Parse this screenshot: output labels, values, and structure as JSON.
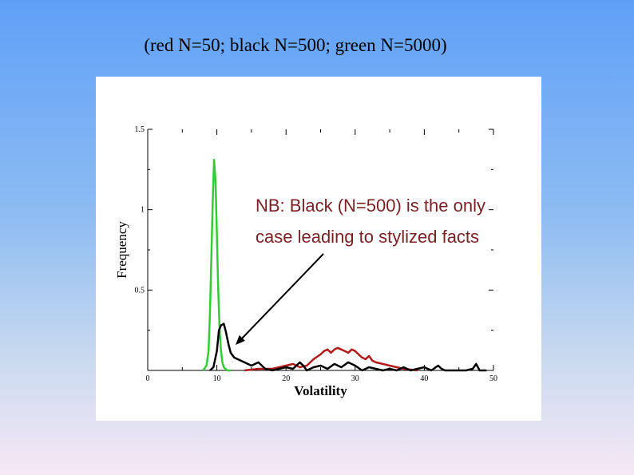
{
  "title": "(red N=50; black N=500; green N=5000)",
  "annotation": {
    "lines": [
      "NB: Black (N=500) is the only",
      "case leading to stylized facts"
    ],
    "color": "#7a1f22"
  },
  "chart_data": {
    "type": "line",
    "xlabel": "Volatility",
    "ylabel": "Frequency",
    "xlim": [
      0,
      50
    ],
    "ylim": [
      0,
      1.5
    ],
    "x_ticks": [
      0,
      10,
      20,
      30,
      40,
      50
    ],
    "y_ticks": [
      0.5,
      1,
      1.5
    ],
    "y_tick_labels": [
      "0.5",
      "1",
      "1.5"
    ],
    "grid": false,
    "series": [
      {
        "name": "N=5000",
        "color": "#33cc33",
        "x": [
          8.0,
          8.5,
          8.8,
          9.0,
          9.2,
          9.4,
          9.6,
          9.8,
          10.0,
          10.2,
          10.4,
          10.6,
          10.8,
          11.0,
          11.5,
          12.0
        ],
        "y": [
          0,
          0.03,
          0.12,
          0.35,
          0.7,
          1.05,
          1.31,
          1.18,
          0.85,
          0.5,
          0.25,
          0.12,
          0.05,
          0.02,
          0.0,
          0
        ]
      },
      {
        "name": "N=500",
        "color": "#000000",
        "x": [
          9.0,
          9.5,
          10.0,
          10.3,
          10.6,
          11.0,
          11.3,
          11.7,
          12.0,
          12.5,
          13.0,
          14.0,
          15.0,
          16.0,
          17.0,
          18.0,
          19.0,
          20.0,
          21.0,
          22.0,
          22.5,
          23.0,
          24.0,
          25.0,
          26.0,
          27.0,
          28.0,
          29.0,
          30.0,
          31.0,
          32.0,
          33.0,
          34.0,
          35.0,
          36.0,
          37.0,
          38.0,
          39.0,
          40.0,
          41.0,
          42.0,
          42.5,
          43.0,
          44.0,
          45.0,
          46.0,
          47.0,
          47.5,
          48.0,
          48.5,
          49.0
        ],
        "y": [
          0,
          0.02,
          0.12,
          0.25,
          0.28,
          0.29,
          0.24,
          0.16,
          0.11,
          0.08,
          0.07,
          0.05,
          0.03,
          0.05,
          0.01,
          0.0,
          0.01,
          0.02,
          0.01,
          0.05,
          0.03,
          0.0,
          0.02,
          0.03,
          0.01,
          0.04,
          0.02,
          0.05,
          0.03,
          0.0,
          0.02,
          0.01,
          0.0,
          0.01,
          0.0,
          0.02,
          0.0,
          0.01,
          0.02,
          0.0,
          0.03,
          0.01,
          0.0,
          0.0,
          0.0,
          0.0,
          0.01,
          0.04,
          0.0,
          0.0,
          0
        ]
      },
      {
        "name": "N=50",
        "color": "#b31b1b",
        "x": [
          14.0,
          16.0,
          18.0,
          20.0,
          21.0,
          22.0,
          23.0,
          24.0,
          25.0,
          25.5,
          26.0,
          26.5,
          27.0,
          27.5,
          28.0,
          28.5,
          29.0,
          29.5,
          30.0,
          30.5,
          31.0,
          31.5,
          32.0,
          32.5,
          33.0,
          34.0,
          35.0,
          36.0,
          37.0,
          38.0,
          39.0
        ],
        "y": [
          0,
          0.01,
          0.01,
          0.03,
          0.04,
          0.02,
          0.03,
          0.07,
          0.1,
          0.12,
          0.13,
          0.11,
          0.13,
          0.14,
          0.13,
          0.12,
          0.11,
          0.13,
          0.12,
          0.1,
          0.08,
          0.07,
          0.09,
          0.06,
          0.05,
          0.04,
          0.03,
          0.02,
          0.01,
          0.005,
          0
        ]
      }
    ]
  }
}
